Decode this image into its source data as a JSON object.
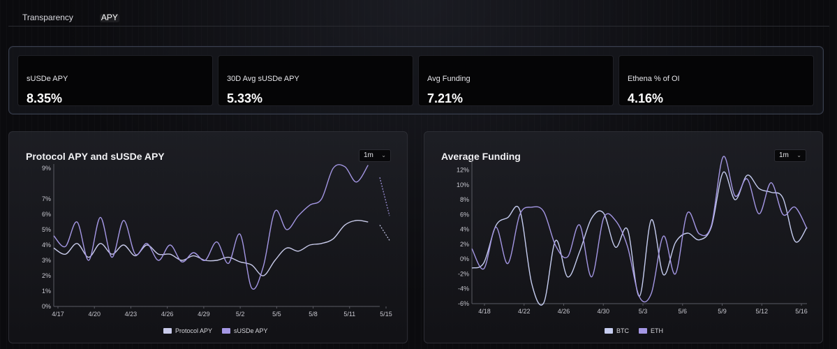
{
  "nav": {
    "tabs": [
      {
        "label": "Transparency",
        "active": false
      },
      {
        "label": "APY",
        "active": true
      }
    ]
  },
  "stats": [
    {
      "label": "sUSDe APY",
      "value": "8.35%"
    },
    {
      "label": "30D Avg sUSDe APY",
      "value": "5.33%"
    },
    {
      "label": "Avg Funding",
      "value": "7.21%"
    },
    {
      "label": "Ethena % of OI",
      "value": "4.16%"
    }
  ],
  "charts": {
    "apy": {
      "title": "Protocol APY and sUSDe APY",
      "range": "1m"
    },
    "funding": {
      "title": "Average Funding",
      "range": "1m"
    }
  },
  "colors": {
    "protocol": "#c9cbeb",
    "susde": "#a497e4",
    "btc": "#c6cdf0",
    "eth": "#a497e4"
  },
  "chart_data": [
    {
      "type": "line",
      "title": "Protocol APY and sUSDe APY",
      "x_ticks": [
        "4/17",
        "4/20",
        "4/23",
        "4/26",
        "4/29",
        "5/2",
        "5/5",
        "5/8",
        "5/11",
        "5/15"
      ],
      "y_ticks": [
        "9%",
        "7%",
        "6%",
        "5%",
        "4%",
        "3%",
        "2%",
        "1%",
        "0%"
      ],
      "ylim": [
        0,
        9
      ],
      "legend": [
        "Protocol APY",
        "sUSDe APY"
      ],
      "series": [
        {
          "name": "Protocol APY",
          "x": [
            0,
            1,
            2,
            3,
            4,
            5,
            6,
            7,
            8,
            9,
            10,
            11,
            12,
            13,
            14,
            15,
            16,
            17,
            18,
            19,
            20,
            21,
            22,
            23,
            24,
            25,
            26,
            27,
            28
          ],
          "values": [
            3.8,
            3.4,
            4.1,
            3.2,
            4.1,
            3.4,
            4.0,
            3.3,
            4.0,
            3.4,
            3.4,
            3.0,
            3.3,
            3.0,
            3.0,
            3.2,
            2.9,
            2.7,
            2.0,
            3.0,
            3.8,
            3.6,
            4.0,
            4.1,
            4.4,
            5.3,
            5.6,
            5.5,
            5.3
          ]
        },
        {
          "name": "sUSDe APY",
          "x": [
            0,
            1,
            2,
            3,
            4,
            5,
            6,
            7,
            8,
            9,
            10,
            11,
            12,
            13,
            14,
            15,
            16,
            17,
            18,
            19,
            20,
            21,
            22,
            23,
            24,
            25,
            26,
            27,
            28
          ],
          "values": [
            4.6,
            3.9,
            5.5,
            3.0,
            5.8,
            3.2,
            5.6,
            3.4,
            4.1,
            3.0,
            4.0,
            2.9,
            3.5,
            3.0,
            4.2,
            2.8,
            4.7,
            1.2,
            2.6,
            6.2,
            5.0,
            5.9,
            6.6,
            7.0,
            9.0,
            9.1,
            8.1,
            9.2,
            8.4
          ]
        }
      ]
    },
    {
      "type": "line",
      "title": "Average Funding",
      "x_ticks": [
        "4/18",
        "4/22",
        "4/26",
        "4/30",
        "5/3",
        "5/6",
        "5/9",
        "5/12",
        "5/16"
      ],
      "y_ticks": [
        "12%",
        "10%",
        "8%",
        "6%",
        "4%",
        "2%",
        "0%",
        "-2%",
        "-4%",
        "-6%"
      ],
      "ylim": [
        -6,
        13
      ],
      "legend": [
        "BTC",
        "ETH"
      ],
      "series": [
        {
          "name": "BTC",
          "x": [
            0,
            1,
            2,
            3,
            4,
            5,
            6,
            7,
            8,
            9,
            10,
            11,
            12,
            13,
            14,
            15,
            16,
            17,
            18,
            19,
            20,
            21,
            22,
            23,
            24,
            25,
            26,
            27,
            28
          ],
          "values": [
            -1.2,
            -0.5,
            4.5,
            5.6,
            6.6,
            -3.3,
            -5.9,
            2.5,
            -2.4,
            1.0,
            5.5,
            6.2,
            1.6,
            4.0,
            -5.0,
            5.3,
            -2.1,
            2.2,
            3.5,
            2.6,
            4.3,
            11.7,
            8.0,
            11.3,
            9.5,
            9.0,
            8.2,
            2.4,
            4.3
          ]
        },
        {
          "name": "ETH",
          "x": [
            0,
            1,
            2,
            3,
            4,
            5,
            6,
            7,
            8,
            9,
            10,
            11,
            12,
            13,
            14,
            15,
            16,
            17,
            18,
            19,
            20,
            21,
            22,
            23,
            24,
            25,
            26,
            27,
            28
          ],
          "values": [
            1.4,
            -1.3,
            4.3,
            -0.6,
            6.0,
            7.0,
            6.4,
            1.8,
            0.3,
            4.6,
            -2.4,
            5.5,
            5.2,
            1.7,
            -5.1,
            -4.6,
            3.1,
            -2.0,
            6.2,
            3.4,
            4.5,
            13.8,
            8.5,
            10.8,
            6.1,
            10.3,
            6.0,
            7.0,
            4.1
          ]
        }
      ]
    }
  ]
}
